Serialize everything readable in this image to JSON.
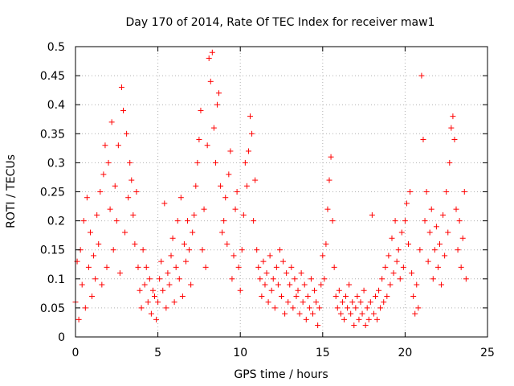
{
  "chart_data": {
    "type": "scatter",
    "title": "Day 170 of 2014, Rate Of TEC Index for receiver maw1",
    "xlabel": "GPS time / hours",
    "ylabel": "ROTI / TECUs",
    "xlim": [
      0,
      25
    ],
    "ylim": [
      0,
      0.5
    ],
    "x_ticks": [
      0,
      5,
      10,
      15,
      20,
      25
    ],
    "y_ticks": [
      0,
      0.05,
      0.1,
      0.15,
      0.2,
      0.25,
      0.3,
      0.35,
      0.4,
      0.45,
      0.5
    ],
    "x_tick_labels": [
      "0",
      "5",
      "10",
      "15",
      "20",
      "25"
    ],
    "y_tick_labels": [
      "0",
      "0.05",
      "0.1",
      "0.15",
      "0.2",
      "0.25",
      "0.3",
      "0.35",
      "0.4",
      "0.45",
      "0.5"
    ],
    "grid": true,
    "marker": "+",
    "color": "#ff0000",
    "series": [
      {
        "name": "ROTI",
        "points": [
          [
            0.0,
            0.06
          ],
          [
            0.1,
            0.13
          ],
          [
            0.2,
            0.03
          ],
          [
            0.3,
            0.15
          ],
          [
            0.4,
            0.09
          ],
          [
            0.5,
            0.2
          ],
          [
            0.6,
            0.05
          ],
          [
            0.7,
            0.24
          ],
          [
            0.8,
            0.12
          ],
          [
            0.9,
            0.18
          ],
          [
            1.0,
            0.07
          ],
          [
            1.1,
            0.14
          ],
          [
            1.2,
            0.1
          ],
          [
            1.3,
            0.21
          ],
          [
            1.4,
            0.16
          ],
          [
            1.5,
            0.25
          ],
          [
            1.6,
            0.09
          ],
          [
            1.7,
            0.28
          ],
          [
            1.8,
            0.33
          ],
          [
            1.9,
            0.12
          ],
          [
            2.0,
            0.3
          ],
          [
            2.1,
            0.22
          ],
          [
            2.2,
            0.37
          ],
          [
            2.3,
            0.15
          ],
          [
            2.4,
            0.26
          ],
          [
            2.5,
            0.2
          ],
          [
            2.6,
            0.33
          ],
          [
            2.7,
            0.11
          ],
          [
            2.8,
            0.43
          ],
          [
            2.9,
            0.39
          ],
          [
            3.0,
            0.18
          ],
          [
            3.1,
            0.35
          ],
          [
            3.2,
            0.24
          ],
          [
            3.3,
            0.3
          ],
          [
            3.4,
            0.27
          ],
          [
            3.5,
            0.21
          ],
          [
            3.6,
            0.16
          ],
          [
            3.7,
            0.25
          ],
          [
            3.8,
            0.12
          ],
          [
            3.9,
            0.08
          ],
          [
            4.0,
            0.05
          ],
          [
            4.1,
            0.15
          ],
          [
            4.2,
            0.09
          ],
          [
            4.3,
            0.12
          ],
          [
            4.4,
            0.06
          ],
          [
            4.5,
            0.1
          ],
          [
            4.6,
            0.04
          ],
          [
            4.7,
            0.08
          ],
          [
            4.8,
            0.07
          ],
          [
            4.9,
            0.03
          ],
          [
            5.0,
            0.06
          ],
          [
            5.1,
            0.1
          ],
          [
            5.2,
            0.13
          ],
          [
            5.3,
            0.08
          ],
          [
            5.4,
            0.23
          ],
          [
            5.5,
            0.05
          ],
          [
            5.6,
            0.11
          ],
          [
            5.7,
            0.09
          ],
          [
            5.8,
            0.14
          ],
          [
            5.9,
            0.17
          ],
          [
            6.0,
            0.06
          ],
          [
            6.1,
            0.12
          ],
          [
            6.2,
            0.2
          ],
          [
            6.3,
            0.1
          ],
          [
            6.4,
            0.24
          ],
          [
            6.5,
            0.07
          ],
          [
            6.6,
            0.16
          ],
          [
            6.7,
            0.13
          ],
          [
            6.8,
            0.2
          ],
          [
            6.9,
            0.15
          ],
          [
            7.0,
            0.09
          ],
          [
            7.1,
            0.18
          ],
          [
            7.2,
            0.21
          ],
          [
            7.3,
            0.26
          ],
          [
            7.4,
            0.3
          ],
          [
            7.5,
            0.34
          ],
          [
            7.6,
            0.39
          ],
          [
            7.7,
            0.15
          ],
          [
            7.8,
            0.22
          ],
          [
            7.9,
            0.12
          ],
          [
            8.0,
            0.33
          ],
          [
            8.1,
            0.48
          ],
          [
            8.2,
            0.44
          ],
          [
            8.3,
            0.49
          ],
          [
            8.4,
            0.36
          ],
          [
            8.5,
            0.3
          ],
          [
            8.6,
            0.4
          ],
          [
            8.7,
            0.42
          ],
          [
            8.8,
            0.26
          ],
          [
            8.9,
            0.18
          ],
          [
            9.0,
            0.2
          ],
          [
            9.1,
            0.24
          ],
          [
            9.2,
            0.16
          ],
          [
            9.3,
            0.28
          ],
          [
            9.4,
            0.32
          ],
          [
            9.5,
            0.1
          ],
          [
            9.6,
            0.14
          ],
          [
            9.7,
            0.22
          ],
          [
            9.8,
            0.25
          ],
          [
            9.9,
            0.12
          ],
          [
            10.0,
            0.08
          ],
          [
            10.1,
            0.15
          ],
          [
            10.2,
            0.21
          ],
          [
            10.3,
            0.3
          ],
          [
            10.4,
            0.26
          ],
          [
            10.5,
            0.32
          ],
          [
            10.6,
            0.38
          ],
          [
            10.7,
            0.35
          ],
          [
            10.8,
            0.2
          ],
          [
            10.9,
            0.27
          ],
          [
            11.0,
            0.15
          ],
          [
            11.1,
            0.12
          ],
          [
            11.2,
            0.1
          ],
          [
            11.3,
            0.07
          ],
          [
            11.4,
            0.13
          ],
          [
            11.5,
            0.09
          ],
          [
            11.6,
            0.11
          ],
          [
            11.7,
            0.06
          ],
          [
            11.8,
            0.14
          ],
          [
            11.9,
            0.08
          ],
          [
            12.0,
            0.1
          ],
          [
            12.1,
            0.05
          ],
          [
            12.2,
            0.12
          ],
          [
            12.3,
            0.09
          ],
          [
            12.4,
            0.15
          ],
          [
            12.5,
            0.07
          ],
          [
            12.6,
            0.13
          ],
          [
            12.7,
            0.04
          ],
          [
            12.8,
            0.11
          ],
          [
            12.9,
            0.06
          ],
          [
            13.0,
            0.09
          ],
          [
            13.1,
            0.12
          ],
          [
            13.2,
            0.05
          ],
          [
            13.3,
            0.1
          ],
          [
            13.4,
            0.07
          ],
          [
            13.5,
            0.08
          ],
          [
            13.6,
            0.04
          ],
          [
            13.7,
            0.11
          ],
          [
            13.8,
            0.06
          ],
          [
            13.9,
            0.09
          ],
          [
            14.0,
            0.03
          ],
          [
            14.1,
            0.07
          ],
          [
            14.2,
            0.05
          ],
          [
            14.3,
            0.1
          ],
          [
            14.4,
            0.04
          ],
          [
            14.5,
            0.08
          ],
          [
            14.6,
            0.06
          ],
          [
            14.7,
            0.02
          ],
          [
            14.8,
            0.05
          ],
          [
            14.9,
            0.09
          ],
          [
            15.0,
            0.14
          ],
          [
            15.1,
            0.1
          ],
          [
            15.2,
            0.16
          ],
          [
            15.3,
            0.22
          ],
          [
            15.4,
            0.27
          ],
          [
            15.5,
            0.31
          ],
          [
            15.6,
            0.2
          ],
          [
            15.7,
            0.12
          ],
          [
            15.8,
            0.07
          ],
          [
            15.9,
            0.05
          ],
          [
            16.0,
            0.08
          ],
          [
            16.1,
            0.04
          ],
          [
            16.2,
            0.06
          ],
          [
            16.3,
            0.03
          ],
          [
            16.4,
            0.07
          ],
          [
            16.5,
            0.05
          ],
          [
            16.6,
            0.09
          ],
          [
            16.7,
            0.04
          ],
          [
            16.8,
            0.06
          ],
          [
            16.9,
            0.02
          ],
          [
            17.0,
            0.05
          ],
          [
            17.1,
            0.07
          ],
          [
            17.2,
            0.03
          ],
          [
            17.3,
            0.06
          ],
          [
            17.4,
            0.04
          ],
          [
            17.5,
            0.08
          ],
          [
            17.6,
            0.02
          ],
          [
            17.7,
            0.05
          ],
          [
            17.8,
            0.03
          ],
          [
            17.9,
            0.06
          ],
          [
            18.0,
            0.21
          ],
          [
            18.1,
            0.04
          ],
          [
            18.2,
            0.07
          ],
          [
            18.3,
            0.03
          ],
          [
            18.4,
            0.08
          ],
          [
            18.5,
            0.05
          ],
          [
            18.6,
            0.1
          ],
          [
            18.7,
            0.06
          ],
          [
            18.8,
            0.12
          ],
          [
            18.9,
            0.07
          ],
          [
            19.0,
            0.14
          ],
          [
            19.1,
            0.09
          ],
          [
            19.2,
            0.17
          ],
          [
            19.3,
            0.11
          ],
          [
            19.4,
            0.2
          ],
          [
            19.5,
            0.13
          ],
          [
            19.6,
            0.15
          ],
          [
            19.7,
            0.1
          ],
          [
            19.8,
            0.18
          ],
          [
            19.9,
            0.12
          ],
          [
            20.0,
            0.2
          ],
          [
            20.1,
            0.23
          ],
          [
            20.2,
            0.16
          ],
          [
            20.3,
            0.25
          ],
          [
            20.4,
            0.11
          ],
          [
            20.5,
            0.07
          ],
          [
            20.6,
            0.04
          ],
          [
            20.7,
            0.09
          ],
          [
            20.8,
            0.05
          ],
          [
            20.9,
            0.15
          ],
          [
            21.0,
            0.45
          ],
          [
            21.1,
            0.34
          ],
          [
            21.2,
            0.2
          ],
          [
            21.3,
            0.25
          ],
          [
            21.4,
            0.13
          ],
          [
            21.5,
            0.18
          ],
          [
            21.6,
            0.22
          ],
          [
            21.7,
            0.1
          ],
          [
            21.8,
            0.15
          ],
          [
            21.9,
            0.19
          ],
          [
            22.0,
            0.12
          ],
          [
            22.1,
            0.16
          ],
          [
            22.2,
            0.09
          ],
          [
            22.3,
            0.21
          ],
          [
            22.4,
            0.14
          ],
          [
            22.5,
            0.25
          ],
          [
            22.6,
            0.18
          ],
          [
            22.7,
            0.3
          ],
          [
            22.8,
            0.36
          ],
          [
            22.9,
            0.38
          ],
          [
            23.0,
            0.34
          ],
          [
            23.1,
            0.22
          ],
          [
            23.2,
            0.15
          ],
          [
            23.3,
            0.2
          ],
          [
            23.4,
            0.12
          ],
          [
            23.5,
            0.17
          ],
          [
            23.6,
            0.25
          ],
          [
            23.7,
            0.1
          ]
        ]
      }
    ]
  }
}
